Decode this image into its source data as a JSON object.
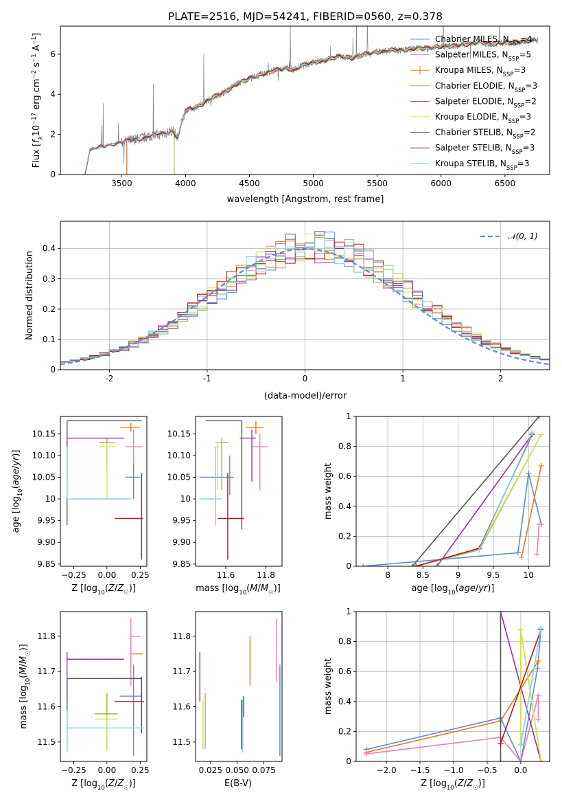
{
  "figure_title": "PLATE=2516, MJD=54241, FIBERID=0560, z=0.378",
  "colors": {
    "c0": "#5b8bd6",
    "c1": "#e07b1f",
    "c2": "#e67fb8",
    "c3": "#9cb648",
    "c4": "#9a2fb0",
    "c5": "#d8e04a",
    "c6": "#555555",
    "c7": "#b8161c",
    "c8": "#7fd3e0"
  },
  "legend_entries": [
    {
      "label": "Chabrier MILES, N",
      "sub": "SSP",
      "suffix": "=4",
      "color": "#5b8bd6"
    },
    {
      "label": "Salpeter MILES, N",
      "sub": "SSP",
      "suffix": "=5",
      "color": "#e67fb8"
    },
    {
      "label": "Kroupa MILES, N",
      "sub": "SSP",
      "suffix": "=3",
      "color": "#e07b1f"
    },
    {
      "label": "Chabrier ELODIE, N",
      "sub": "SSP",
      "suffix": "=3",
      "color": "#9cb648"
    },
    {
      "label": "Salpeter ELODIE, N",
      "sub": "SSP",
      "suffix": "=2",
      "color": "#9a2fb0"
    },
    {
      "label": "Kroupa ELODIE, N",
      "sub": "SSP",
      "suffix": "=3",
      "color": "#d8e04a"
    },
    {
      "label": "Chabrier STELIB, N",
      "sub": "SSP",
      "suffix": "=2",
      "color": "#555555"
    },
    {
      "label": "Salpeter STELIB, N",
      "sub": "SSP",
      "suffix": "=3",
      "color": "#b8161c"
    },
    {
      "label": "Kroupa STELIB, N",
      "sub": "SSP",
      "suffix": "=3",
      "color": "#7fd3e0"
    }
  ],
  "chart_data": [
    {
      "id": "spectrum",
      "type": "line",
      "title": "PLATE=2516, MJD=54241, FIBERID=0560, z=0.378",
      "xlabel": "wavelength [Angstrom, rest frame]",
      "ylabel": "Flux [f_λ 10^-17 erg cm^-2 s^-1 A^-1]",
      "xlim": [
        3020,
        6850
      ],
      "ylim": [
        0,
        7.4
      ],
      "xticks": [
        3500,
        4000,
        4500,
        5000,
        5500,
        6000,
        6500
      ],
      "yticks": [
        0,
        2,
        4,
        6
      ],
      "data_color": "#808080",
      "data_x": [
        3210,
        3250,
        3300,
        3400,
        3500,
        3560,
        3650,
        3700,
        3800,
        3900,
        3940,
        3970,
        4000,
        4050,
        4100,
        4200,
        4300,
        4400,
        4500,
        4600,
        4700,
        4800,
        4860,
        4900,
        5000,
        5100,
        5200,
        5300,
        5400,
        5500,
        5600,
        5700,
        5800,
        5900,
        6000,
        6100,
        6200,
        6300,
        6400,
        6500,
        6600,
        6700,
        6760
      ],
      "data_y": [
        0,
        1.2,
        1.3,
        1.5,
        1.6,
        1.7,
        1.8,
        1.9,
        2.0,
        2.2,
        1.8,
        2.6,
        3.2,
        3.3,
        3.4,
        3.8,
        4.1,
        4.5,
        4.8,
        5.0,
        5.2,
        5.3,
        5.2,
        5.4,
        5.6,
        5.7,
        5.9,
        5.8,
        6.0,
        6.1,
        6.2,
        6.2,
        6.3,
        6.3,
        6.4,
        6.4,
        6.5,
        6.6,
        6.5,
        6.6,
        6.6,
        6.7,
        6.7
      ],
      "models": [
        {
          "name": "Chabrier MILES",
          "start": 3540,
          "color": "#5b8bd6"
        },
        {
          "name": "Salpeter MILES",
          "start": 3540,
          "color": "#e67fb8"
        },
        {
          "name": "Kroupa MILES",
          "start": 3540,
          "color": "#e07b1f"
        },
        {
          "name": "Chabrier ELODIE",
          "start": 3910,
          "color": "#9cb648"
        },
        {
          "name": "Salpeter ELODIE",
          "start": 3910,
          "color": "#9a2fb0"
        },
        {
          "name": "Kroupa ELODIE",
          "start": 3910,
          "color": "#d8e04a"
        },
        {
          "name": "Chabrier STELIB",
          "start": 3210,
          "color": "#555555"
        },
        {
          "name": "Salpeter STELIB",
          "start": 3210,
          "color": "#b8161c"
        },
        {
          "name": "Kroupa STELIB",
          "start": 3210,
          "color": "#7fd3e0"
        }
      ]
    },
    {
      "id": "residuals",
      "type": "histogram",
      "xlabel": "(data-model)/error",
      "ylabel": "Normed distribution",
      "xlim": [
        -2.5,
        2.5
      ],
      "ylim": [
        0,
        0.49
      ],
      "xticks": [
        -2,
        -1,
        0,
        1,
        2
      ],
      "yticks": [
        0.0,
        0.1,
        0.2,
        0.3,
        0.4
      ],
      "grid": true,
      "legend": "top-right",
      "gaussian_label": "𝒩(0, 1)",
      "gaussian_color": "#5b8bd6",
      "bin_width": 0.1,
      "series_colors": [
        "#5b8bd6",
        "#e07b1f",
        "#e67fb8",
        "#9cb648",
        "#9a2fb0",
        "#d8e04a",
        "#555555",
        "#b8161c",
        "#7fd3e0"
      ]
    },
    {
      "id": "age_vs_Z",
      "type": "errorbar",
      "xlabel": "Z [log10(Z/Z☉)]",
      "ylabel": "age [log10(age/yr)]",
      "xlim": [
        -0.35,
        0.3
      ],
      "ylim": [
        9.845,
        10.19
      ],
      "xticks": [
        -0.25,
        0.0,
        0.25
      ],
      "xtick_labels": [
        "−0.25",
        "0.00",
        "0.25"
      ],
      "yticks": [
        9.85,
        9.9,
        9.95,
        10.0,
        10.05,
        10.1,
        10.15
      ],
      "points": [
        {
          "x": 0.2,
          "xerr": [
            0.06,
            0.05
          ],
          "y": 10.05,
          "yerr": [
            0.05,
            0.05
          ],
          "color": "#5b8bd6"
        },
        {
          "x": 0.18,
          "xerr": [
            0.08,
            0.07
          ],
          "y": 10.165,
          "yerr": [
            0.01,
            0.01
          ],
          "color": "#e07b1f"
        },
        {
          "x": 0.2,
          "xerr": [
            0.06,
            0.07
          ],
          "y": 10.12,
          "yerr": [
            0.04,
            0.04
          ],
          "color": "#e67fb8"
        },
        {
          "x": 0.0,
          "xerr": [
            0.06,
            0.06
          ],
          "y": 10.13,
          "yerr": [
            0.06,
            0.01
          ],
          "color": "#9cb648"
        },
        {
          "x": -0.3,
          "xerr": [
            0.0,
            0.43
          ],
          "y": 10.14,
          "yerr": [
            0.1,
            0.02
          ],
          "color": "#9a2fb0"
        },
        {
          "x": 0.0,
          "xerr": [
            0.06,
            0.06
          ],
          "y": 10.12,
          "yerr": [
            0.12,
            0.01
          ],
          "color": "#d8e04a"
        },
        {
          "x": -0.3,
          "xerr": [
            0.0,
            0.56
          ],
          "y": 10.18,
          "yerr": [
            0.24,
            0.0
          ],
          "color": "#555555"
        },
        {
          "x": 0.26,
          "xerr": [
            0.2,
            0.01
          ],
          "y": 9.955,
          "yerr": [
            0.095,
            0.105
          ],
          "color": "#b8161c"
        },
        {
          "x": -0.3,
          "xerr": [
            0.0,
            0.48
          ],
          "y": 10.0,
          "yerr": [
            0.0,
            0.12
          ],
          "color": "#7fd3e0"
        }
      ]
    },
    {
      "id": "age_vs_mass",
      "type": "errorbar",
      "xlabel": "mass [log10(M/M☉)]",
      "ylabel": "",
      "xlim": [
        11.45,
        11.88
      ],
      "ylim": [
        9.845,
        10.19
      ],
      "xticks": [
        11.6,
        11.8
      ],
      "xtick_labels": [
        "11.6",
        "11.8"
      ],
      "yticks": [
        9.85,
        9.9,
        9.95,
        10.0,
        10.05,
        10.1,
        10.15
      ],
      "points": [
        {
          "x": 11.62,
          "xerr": [
            0.15,
            0.02
          ],
          "y": 10.05,
          "yerr": [
            0.04,
            0.05
          ],
          "color": "#5b8bd6"
        },
        {
          "x": 11.75,
          "xerr": [
            0.05,
            0.04
          ],
          "y": 10.165,
          "yerr": [
            0.015,
            0.015
          ],
          "color": "#e07b1f"
        },
        {
          "x": 11.77,
          "xerr": [
            0.04,
            0.04
          ],
          "y": 10.12,
          "yerr": [
            0.1,
            0.03
          ],
          "color": "#e67fb8"
        },
        {
          "x": 11.58,
          "xerr": [
            0.03,
            0.03
          ],
          "y": 10.13,
          "yerr": [
            0.11,
            0.01
          ],
          "color": "#9cb648"
        },
        {
          "x": 11.73,
          "xerr": [
            0.06,
            0.02
          ],
          "y": 10.14,
          "yerr": [
            0.1,
            0.02
          ],
          "color": "#9a2fb0"
        },
        {
          "x": 11.56,
          "xerr": [
            0.01,
            0.01
          ],
          "y": 10.12,
          "yerr": [
            0.1,
            0.01
          ],
          "color": "#d8e04a"
        },
        {
          "x": 11.68,
          "xerr": [
            0.18,
            0.0
          ],
          "y": 10.18,
          "yerr": [
            0.25,
            0.0
          ],
          "color": "#555555"
        },
        {
          "x": 11.61,
          "xerr": [
            0.05,
            0.08
          ],
          "y": 9.955,
          "yerr": [
            0.095,
            0.105
          ],
          "color": "#b8161c"
        },
        {
          "x": 11.55,
          "xerr": [
            0.08,
            0.03
          ],
          "y": 10.0,
          "yerr": [
            0.06,
            0.12
          ],
          "color": "#7fd3e0"
        }
      ]
    },
    {
      "id": "weight_vs_age",
      "type": "line",
      "xlabel": "age [log10(age/yr)]",
      "ylabel": "mass weight",
      "xlim": [
        7.55,
        10.3
      ],
      "ylim": [
        0,
        1.0
      ],
      "xticks": [
        8.0,
        8.5,
        9.0,
        9.5,
        10.0
      ],
      "yticks": [
        0.0,
        0.2,
        0.4,
        0.6,
        0.8,
        1.0
      ],
      "grid": true,
      "series": [
        {
          "color": "#5b8bd6",
          "x": [
            7.65,
            9.85,
            10.0,
            10.18
          ],
          "y": [
            0.0,
            0.09,
            0.62,
            0.28
          ]
        },
        {
          "color": "#e07b1f",
          "x": [
            9.9,
            10.18
          ],
          "y": [
            0.06,
            0.67
          ]
        },
        {
          "color": "#e67fb8",
          "x": [
            10.12,
            10.15
          ],
          "y": [
            0.08,
            0.28
          ]
        },
        {
          "color": "#9cb648",
          "x": [
            8.4,
            9.3,
            10.18
          ],
          "y": [
            0.0,
            0.11,
            0.88
          ]
        },
        {
          "color": "#9a2fb0",
          "x": [
            8.7,
            10.05
          ],
          "y": [
            0.0,
            0.88
          ]
        },
        {
          "color": "#d8e04a",
          "x": [
            8.4,
            9.3,
            10.18
          ],
          "y": [
            0.0,
            0.12,
            0.88
          ]
        },
        {
          "color": "#555555",
          "x": [
            8.35,
            10.15
          ],
          "y": [
            0.0,
            1.0
          ]
        },
        {
          "color": "#b8161c",
          "x": [
            8.4,
            9.3,
            10.05
          ],
          "y": [
            0.0,
            0.12,
            0.88
          ]
        },
        {
          "color": "#7fd3e0",
          "x": [
            9.3,
            10.05
          ],
          "y": [
            0.11,
            0.89
          ]
        }
      ]
    },
    {
      "id": "mass_vs_Z",
      "type": "errorbar",
      "xlabel": "Z [log10(Z/Z☉)]",
      "ylabel": "mass [log10(M/M☉)]",
      "xlim": [
        -0.35,
        0.3
      ],
      "ylim": [
        11.445,
        11.87
      ],
      "xticks": [
        -0.25,
        0.0,
        0.25
      ],
      "xtick_labels": [
        "−0.25",
        "0.00",
        "0.25"
      ],
      "yticks": [
        11.5,
        11.6,
        11.7,
        11.8
      ],
      "points": [
        {
          "x": 0.2,
          "xerr": [
            0.1,
            0.06
          ],
          "y": 11.63,
          "yerr": [
            0.17,
            0.09
          ],
          "color": "#5b8bd6"
        },
        {
          "x": 0.18,
          "xerr": [
            0.0,
            0.09
          ],
          "y": 11.75,
          "yerr": [
            0.04,
            0.06
          ],
          "color": "#e07b1f"
        },
        {
          "x": 0.18,
          "xerr": [
            0.0,
            0.07
          ],
          "y": 11.8,
          "yerr": [
            0.14,
            0.05
          ],
          "color": "#e67fb8"
        },
        {
          "x": 0.0,
          "xerr": [
            0.09,
            0.08
          ],
          "y": 11.58,
          "yerr": [
            0.1,
            0.06
          ],
          "color": "#9cb648"
        },
        {
          "x": -0.3,
          "xerr": [
            0.0,
            0.43
          ],
          "y": 11.735,
          "yerr": [
            0.12,
            0.02
          ],
          "color": "#9a2fb0"
        },
        {
          "x": 0.0,
          "xerr": [
            0.09,
            0.08
          ],
          "y": 11.565,
          "yerr": [
            0.09,
            0.01
          ],
          "color": "#d8e04a"
        },
        {
          "x": -0.3,
          "xerr": [
            0.0,
            0.56
          ],
          "y": 11.68,
          "yerr": [
            0.2,
            0.0
          ],
          "color": "#555555"
        },
        {
          "x": 0.26,
          "xerr": [
            0.2,
            0.02
          ],
          "y": 11.615,
          "yerr": [
            0.09,
            0.07
          ],
          "color": "#b8161c"
        },
        {
          "x": -0.3,
          "xerr": [
            0.0,
            0.58
          ],
          "y": 11.54,
          "yerr": [
            0.07,
            0.05
          ],
          "color": "#7fd3e0"
        }
      ]
    },
    {
      "id": "mass_vs_ebv",
      "type": "errorbar",
      "xlabel": "E(B-V)",
      "ylabel": "",
      "xlim": [
        0.011,
        0.092
      ],
      "ylim": [
        11.445,
        11.87
      ],
      "xticks": [
        0.025,
        0.05,
        0.075
      ],
      "xtick_labels": [
        "0.025",
        "0.050",
        "0.075"
      ],
      "yticks": [
        11.5,
        11.6,
        11.7,
        11.8
      ],
      "points": [
        {
          "x": 0.09,
          "y": 11.59,
          "yerr": [
            0.13,
            0.13
          ],
          "color": "#5b8bd6"
        },
        {
          "x": 0.062,
          "y": 11.73,
          "yerr": [
            0.07,
            0.07
          ],
          "color": "#e07b1f"
        },
        {
          "x": 0.087,
          "y": 11.76,
          "yerr": [
            0.09,
            0.09
          ],
          "color": "#e67fb8"
        },
        {
          "x": 0.02,
          "y": 11.56,
          "yerr": [
            0.08,
            0.08
          ],
          "color": "#9cb648"
        },
        {
          "x": 0.015,
          "y": 11.685,
          "yerr": [
            0.07,
            0.07
          ],
          "color": "#9a2fb0"
        },
        {
          "x": 0.018,
          "y": 11.55,
          "yerr": [
            0.07,
            0.07
          ],
          "color": "#d8e04a"
        },
        {
          "x": 0.054,
          "y": 11.55,
          "yerr": [
            0.07,
            0.07
          ],
          "color": "#555555"
        },
        {
          "x": 0.056,
          "y": 11.6,
          "yerr": [
            0.03,
            0.03
          ],
          "color": "#b8161c"
        },
        {
          "x": 0.055,
          "y": 11.545,
          "yerr": [
            0.075,
            0.075
          ],
          "color": "#7fd3e0"
        }
      ]
    },
    {
      "id": "weight_vs_Z",
      "type": "line",
      "xlabel": "Z [log10(Z/Z☉)]",
      "ylabel": "mass weight",
      "xlim": [
        -2.45,
        0.43
      ],
      "ylim": [
        0,
        1.0
      ],
      "xticks": [
        -2.0,
        -1.5,
        -1.0,
        -0.5,
        0.0
      ],
      "xtick_labels": [
        "−2.0",
        "−1.5",
        "−1.0",
        "−0.5",
        "0.0"
      ],
      "yticks": [
        0.0,
        0.2,
        0.4,
        0.6,
        0.8,
        1.0
      ],
      "grid": true,
      "series": [
        {
          "color": "#5b8bd6",
          "x": [
            -2.3,
            -0.3,
            0.0,
            0.25,
            0.3
          ],
          "y": [
            0.08,
            0.29,
            0.0,
            0.62,
            0.88
          ]
        },
        {
          "color": "#e07b1f",
          "x": [
            -2.3,
            -0.3,
            0.26
          ],
          "y": [
            0.06,
            0.27,
            0.67
          ]
        },
        {
          "color": "#e67fb8",
          "x": [
            -2.3,
            -0.3,
            0.0,
            0.26,
            0.26
          ],
          "y": [
            0.05,
            0.16,
            0.0,
            0.44,
            0.28
          ]
        },
        {
          "color": "#9cb648",
          "x": [
            0.0,
            0.0,
            0.3
          ],
          "y": [
            0.11,
            0.88,
            0.0
          ]
        },
        {
          "color": "#9a2fb0",
          "x": [
            -0.3,
            0.3
          ],
          "y": [
            1.0,
            0.0
          ]
        },
        {
          "color": "#d8e04a",
          "x": [
            0.0,
            0.0,
            0.3
          ],
          "y": [
            0.12,
            0.88,
            0.0
          ]
        },
        {
          "color": "#555555",
          "x": [
            -0.3,
            -0.3
          ],
          "y": [
            0.0,
            1.0
          ]
        },
        {
          "color": "#b8161c",
          "x": [
            -0.3,
            0.3
          ],
          "y": [
            0.12,
            0.88
          ]
        },
        {
          "color": "#7fd3e0",
          "x": [
            0.0,
            0.3
          ],
          "y": [
            0.11,
            0.89
          ]
        }
      ]
    }
  ]
}
